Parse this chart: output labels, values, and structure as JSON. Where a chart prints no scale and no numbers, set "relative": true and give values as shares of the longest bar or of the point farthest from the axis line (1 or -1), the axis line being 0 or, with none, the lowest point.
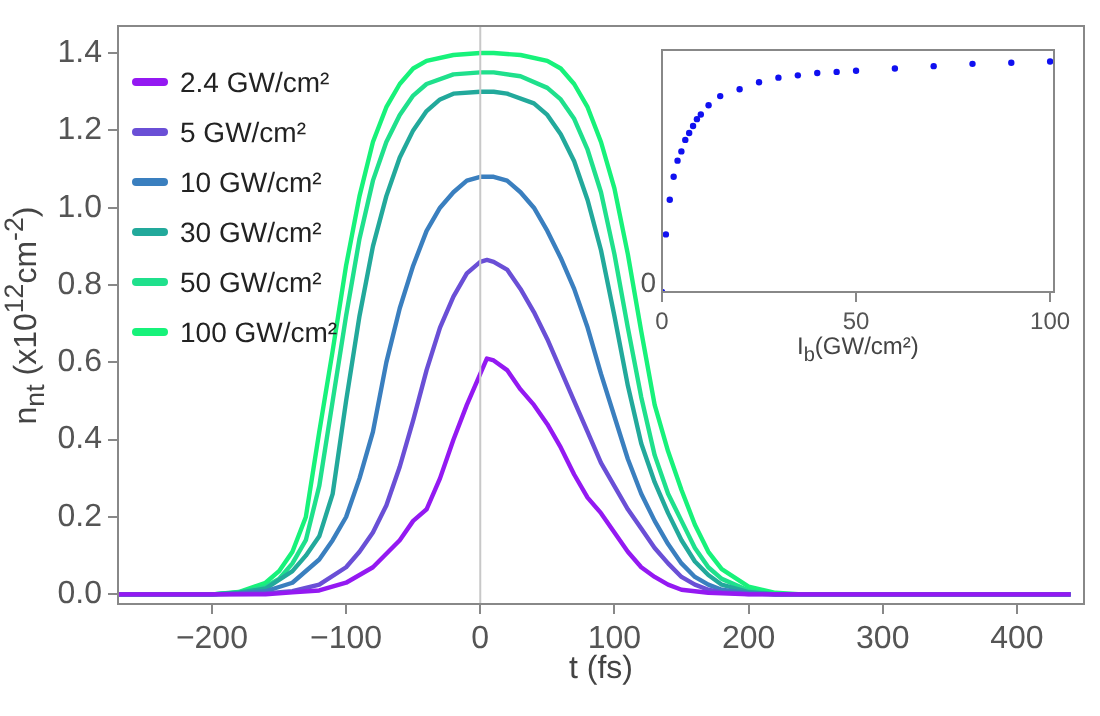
{
  "chart_data": [
    {
      "type": "line",
      "xlabel": "t (fs)",
      "ylabel": "n$_{nt}$ (x10$^{12}$cm$^{-2}$)",
      "xlim": [
        -270,
        450
      ],
      "ylim": [
        -0.025,
        1.47
      ],
      "xticks": [
        {
          "value": -200,
          "label": "−200"
        },
        {
          "value": -100,
          "label": "−100"
        },
        0,
        100,
        200,
        300,
        400
      ],
      "yticks": [
        {
          "value": 0,
          "label": "0.0"
        },
        {
          "value": 0.2,
          "label": "0.2"
        },
        {
          "value": 0.4,
          "label": "0.4"
        },
        {
          "value": 0.6,
          "label": "0.6"
        },
        {
          "value": 0.8,
          "label": "0.8"
        },
        {
          "value": 1,
          "label": "1.0"
        },
        {
          "value": 1.2,
          "label": "1.2"
        },
        {
          "value": 1.4,
          "label": "1.4"
        }
      ],
      "grid": false,
      "legend": "top left",
      "marker": "none",
      "line_style": "solid",
      "ref_lines": [
        {
          "axis": "x",
          "value": 0,
          "color": "#c8c8c8"
        }
      ],
      "series": [
        {
          "name": "2.4 GW/cm²",
          "color": "#9419f2",
          "x": [
            -270,
            -200,
            -160,
            -140,
            -120,
            -100,
            -80,
            -60,
            -50,
            -40,
            -30,
            -20,
            -10,
            0,
            5,
            10,
            20,
            30,
            40,
            50,
            60,
            70,
            80,
            90,
            100,
            110,
            120,
            130,
            140,
            150,
            170,
            200,
            440
          ],
          "values": [
            0,
            0,
            0,
            0.005,
            0.01,
            0.03,
            0.07,
            0.14,
            0.19,
            0.22,
            0.3,
            0.4,
            0.49,
            0.57,
            0.61,
            0.605,
            0.58,
            0.53,
            0.49,
            0.44,
            0.38,
            0.31,
            0.25,
            0.21,
            0.16,
            0.11,
            0.07,
            0.045,
            0.025,
            0.012,
            0.004,
            0,
            0
          ]
        },
        {
          "name": "5 GW/cm²",
          "color": "#6a4fd6",
          "x": [
            -270,
            -200,
            -160,
            -140,
            -120,
            -100,
            -90,
            -80,
            -70,
            -60,
            -50,
            -40,
            -30,
            -20,
            -10,
            0,
            5,
            10,
            20,
            30,
            40,
            50,
            60,
            70,
            80,
            90,
            100,
            110,
            120,
            130,
            140,
            150,
            160,
            170,
            180,
            200,
            220,
            440
          ],
          "values": [
            0,
            0,
            0.002,
            0.008,
            0.025,
            0.07,
            0.11,
            0.16,
            0.23,
            0.33,
            0.45,
            0.58,
            0.69,
            0.77,
            0.83,
            0.86,
            0.865,
            0.86,
            0.84,
            0.79,
            0.73,
            0.66,
            0.58,
            0.5,
            0.42,
            0.34,
            0.28,
            0.22,
            0.17,
            0.12,
            0.08,
            0.045,
            0.025,
            0.012,
            0.005,
            0.001,
            0,
            0
          ]
        },
        {
          "name": "10 GW/cm²",
          "color": "#3a7fbf",
          "x": [
            -270,
            -200,
            -180,
            -160,
            -140,
            -120,
            -110,
            -100,
            -90,
            -80,
            -70,
            -60,
            -50,
            -40,
            -30,
            -20,
            -10,
            0,
            10,
            20,
            30,
            40,
            50,
            60,
            70,
            80,
            90,
            100,
            110,
            120,
            130,
            140,
            150,
            160,
            170,
            180,
            200,
            220,
            440
          ],
          "values": [
            0,
            0,
            0.002,
            0.008,
            0.03,
            0.09,
            0.14,
            0.2,
            0.3,
            0.42,
            0.6,
            0.74,
            0.85,
            0.94,
            1,
            1.04,
            1.07,
            1.08,
            1.08,
            1.07,
            1.04,
            1,
            0.94,
            0.87,
            0.79,
            0.69,
            0.57,
            0.46,
            0.35,
            0.26,
            0.19,
            0.13,
            0.08,
            0.045,
            0.025,
            0.012,
            0.003,
            0,
            0
          ]
        },
        {
          "name": "30 GW/cm²",
          "color": "#22a99b",
          "x": [
            -270,
            -200,
            -180,
            -160,
            -140,
            -130,
            -120,
            -110,
            -100,
            -90,
            -80,
            -70,
            -60,
            -50,
            -40,
            -30,
            -20,
            0,
            10,
            20,
            40,
            50,
            60,
            70,
            80,
            90,
            100,
            110,
            120,
            130,
            140,
            150,
            160,
            170,
            180,
            200,
            220,
            440
          ],
          "values": [
            0,
            0,
            0.004,
            0.015,
            0.06,
            0.1,
            0.15,
            0.26,
            0.5,
            0.72,
            0.9,
            1.03,
            1.13,
            1.2,
            1.25,
            1.28,
            1.295,
            1.3,
            1.3,
            1.295,
            1.27,
            1.24,
            1.19,
            1.12,
            1.02,
            0.89,
            0.72,
            0.54,
            0.39,
            0.29,
            0.21,
            0.14,
            0.085,
            0.05,
            0.025,
            0.006,
            0,
            0
          ]
        },
        {
          "name": "50 GW/cm²",
          "color": "#1fe08c",
          "x": [
            -270,
            -200,
            -180,
            -160,
            -150,
            -140,
            -130,
            -120,
            -110,
            -100,
            -90,
            -80,
            -70,
            -60,
            -50,
            -40,
            -20,
            0,
            10,
            30,
            50,
            60,
            70,
            80,
            90,
            100,
            110,
            120,
            130,
            140,
            150,
            160,
            170,
            180,
            200,
            220,
            440
          ],
          "values": [
            0,
            0,
            0.005,
            0.02,
            0.04,
            0.08,
            0.14,
            0.28,
            0.5,
            0.72,
            0.92,
            1.07,
            1.17,
            1.24,
            1.29,
            1.32,
            1.345,
            1.35,
            1.35,
            1.34,
            1.31,
            1.28,
            1.23,
            1.15,
            1.04,
            0.88,
            0.69,
            0.51,
            0.36,
            0.26,
            0.19,
            0.12,
            0.07,
            0.04,
            0.01,
            0,
            0
          ]
        },
        {
          "name": "100 GW/cm²",
          "color": "#17f27a",
          "x": [
            -270,
            -200,
            -180,
            -160,
            -150,
            -140,
            -130,
            -120,
            -110,
            -100,
            -90,
            -80,
            -70,
            -60,
            -50,
            -40,
            -20,
            0,
            10,
            30,
            50,
            60,
            70,
            80,
            90,
            100,
            110,
            120,
            130,
            140,
            150,
            160,
            170,
            180,
            200,
            220,
            240,
            440
          ],
          "values": [
            0,
            0,
            0.006,
            0.03,
            0.06,
            0.11,
            0.2,
            0.42,
            0.63,
            0.85,
            1.03,
            1.17,
            1.26,
            1.32,
            1.36,
            1.38,
            1.395,
            1.4,
            1.4,
            1.395,
            1.38,
            1.36,
            1.32,
            1.26,
            1.17,
            1.05,
            0.88,
            0.68,
            0.49,
            0.37,
            0.27,
            0.18,
            0.11,
            0.065,
            0.02,
            0.004,
            0,
            0
          ]
        }
      ]
    },
    {
      "type": "scatter",
      "xlabel": "I$_{b}$(GW/cm²)",
      "relative": true,
      "xlim": [
        0,
        101
      ],
      "xticks": [
        0,
        50,
        100
      ],
      "marker": "circle",
      "legend": false,
      "grid": false,
      "annotations": [
        "0"
      ],
      "series": [
        {
          "color": "#1010f0",
          "x": [
            0,
            1,
            2,
            3,
            4,
            5,
            6,
            7,
            8,
            9,
            10,
            12,
            15,
            20,
            25,
            30,
            35,
            40,
            45,
            50,
            60,
            70,
            80,
            90,
            100
          ],
          "values": [
            0,
            0.25,
            0.4,
            0.5,
            0.57,
            0.61,
            0.66,
            0.69,
            0.72,
            0.75,
            0.77,
            0.81,
            0.85,
            0.88,
            0.91,
            0.93,
            0.94,
            0.95,
            0.955,
            0.96,
            0.97,
            0.98,
            0.99,
            0.995,
            1
          ]
        }
      ]
    }
  ]
}
